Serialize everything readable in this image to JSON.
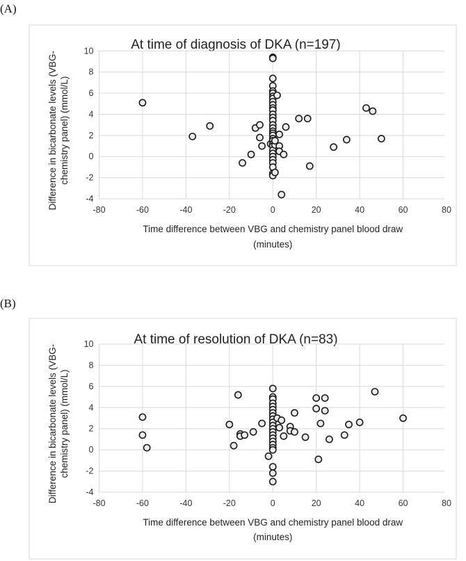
{
  "chart_data": [
    {
      "type": "scatter",
      "panel_label": "(A)",
      "title": "At time of diagnosis of DKA (n=197)",
      "xlabel_lines": [
        "Time difference between VBG and chemistry panel blood draw",
        "(minutes)"
      ],
      "ylabel_lines": [
        "Difference in bicarbonate levels (VBG-",
        "chemistry panel) (mmol/L)"
      ],
      "xlim": [
        -80,
        80
      ],
      "ylim": [
        -4,
        10
      ],
      "xticks": [
        -80,
        -60,
        -40,
        -20,
        0,
        20,
        40,
        60,
        80
      ],
      "yticks": [
        -4,
        -2,
        0,
        2,
        4,
        6,
        8,
        10
      ],
      "grid": true,
      "points": [
        [
          -60,
          5.1
        ],
        [
          -37,
          1.9
        ],
        [
          -29,
          2.9
        ],
        [
          -14,
          -0.6
        ],
        [
          -10,
          0.2
        ],
        [
          -8,
          2.7
        ],
        [
          -6,
          3.0
        ],
        [
          -6,
          1.8
        ],
        [
          -5,
          1.0
        ],
        [
          -1,
          1.2
        ],
        [
          0,
          9.4
        ],
        [
          0,
          9.3
        ],
        [
          0,
          7.4
        ],
        [
          0,
          6.7
        ],
        [
          0,
          6.2
        ],
        [
          0,
          6.0
        ],
        [
          0,
          5.7
        ],
        [
          0,
          5.5
        ],
        [
          0,
          5.2
        ],
        [
          0,
          4.9
        ],
        [
          0,
          4.6
        ],
        [
          0,
          4.4
        ],
        [
          0,
          4.0
        ],
        [
          0,
          3.7
        ],
        [
          0,
          3.4
        ],
        [
          0,
          3.0
        ],
        [
          0,
          2.7
        ],
        [
          0,
          2.4
        ],
        [
          0,
          2.2
        ],
        [
          0,
          2.0
        ],
        [
          0,
          1.7
        ],
        [
          0,
          1.5
        ],
        [
          0,
          1.2
        ],
        [
          0,
          1.0
        ],
        [
          0,
          0.6
        ],
        [
          0,
          0.3
        ],
        [
          0,
          0
        ],
        [
          0,
          -0.3
        ],
        [
          0,
          -0.6
        ],
        [
          0,
          -1.0
        ],
        [
          0,
          -1.6
        ],
        [
          0,
          -1.8
        ],
        [
          1,
          -1.5
        ],
        [
          2,
          5.8
        ],
        [
          1,
          1.1
        ],
        [
          3,
          2.1
        ],
        [
          3,
          1.0
        ],
        [
          3,
          0.5
        ],
        [
          5,
          0.2
        ],
        [
          6,
          2.8
        ],
        [
          12,
          3.6
        ],
        [
          16,
          3.6
        ],
        [
          17,
          -0.9
        ],
        [
          28,
          0.9
        ],
        [
          34,
          1.6
        ],
        [
          43,
          4.6
        ],
        [
          46,
          4.3
        ],
        [
          50,
          1.7
        ],
        [
          4,
          -3.6
        ],
        [
          1,
          1.5
        ]
      ]
    },
    {
      "type": "scatter",
      "panel_label": "(B)",
      "title": "At time of resolution of DKA (n=83)",
      "xlabel_lines": [
        "Time difference between VBG and chemistry panel blood draw",
        "(minutes)"
      ],
      "ylabel_lines": [
        "Difference in bicarbonate levels (VBG-",
        "chemistry panel) (mmol/L)"
      ],
      "xlim": [
        -80,
        80
      ],
      "ylim": [
        -4,
        10
      ],
      "xticks": [
        -80,
        -60,
        -40,
        -20,
        0,
        20,
        40,
        60,
        80
      ],
      "yticks": [
        -4,
        -2,
        0,
        2,
        4,
        6,
        8,
        10
      ],
      "grid": true,
      "points": [
        [
          -60,
          3.1
        ],
        [
          -60,
          1.4
        ],
        [
          -58,
          0.2
        ],
        [
          -20,
          2.4
        ],
        [
          -18,
          0.4
        ],
        [
          -16,
          5.2
        ],
        [
          -15,
          1.5
        ],
        [
          -15,
          1.3
        ],
        [
          -13,
          1.4
        ],
        [
          -9,
          1.7
        ],
        [
          -5,
          2.5
        ],
        [
          -2,
          -0.6
        ],
        [
          0,
          5.8
        ],
        [
          0,
          5.0
        ],
        [
          0,
          4.8
        ],
        [
          0,
          4.4
        ],
        [
          0,
          4.1
        ],
        [
          0,
          3.8
        ],
        [
          0,
          3.5
        ],
        [
          0,
          3.2
        ],
        [
          0,
          2.9
        ],
        [
          0,
          2.6
        ],
        [
          0,
          2.3
        ],
        [
          0,
          2.0
        ],
        [
          0,
          1.7
        ],
        [
          0,
          1.4
        ],
        [
          0,
          1.1
        ],
        [
          0,
          0.8
        ],
        [
          0,
          0.5
        ],
        [
          0,
          0.2
        ],
        [
          0,
          0
        ],
        [
          0,
          -1.6
        ],
        [
          0,
          -2.2
        ],
        [
          0,
          -3.0
        ],
        [
          2,
          3.0
        ],
        [
          3,
          2.1
        ],
        [
          4,
          2.8
        ],
        [
          5,
          1.3
        ],
        [
          8,
          2.2
        ],
        [
          8,
          1.8
        ],
        [
          10,
          3.5
        ],
        [
          10,
          1.7
        ],
        [
          15,
          1.2
        ],
        [
          20,
          4.9
        ],
        [
          20,
          3.9
        ],
        [
          21,
          -0.9
        ],
        [
          22,
          2.5
        ],
        [
          24,
          4.9
        ],
        [
          24,
          3.7
        ],
        [
          26,
          1.0
        ],
        [
          33,
          1.4
        ],
        [
          35,
          2.4
        ],
        [
          40,
          2.6
        ],
        [
          47,
          5.5
        ],
        [
          60,
          3.0
        ]
      ]
    }
  ]
}
